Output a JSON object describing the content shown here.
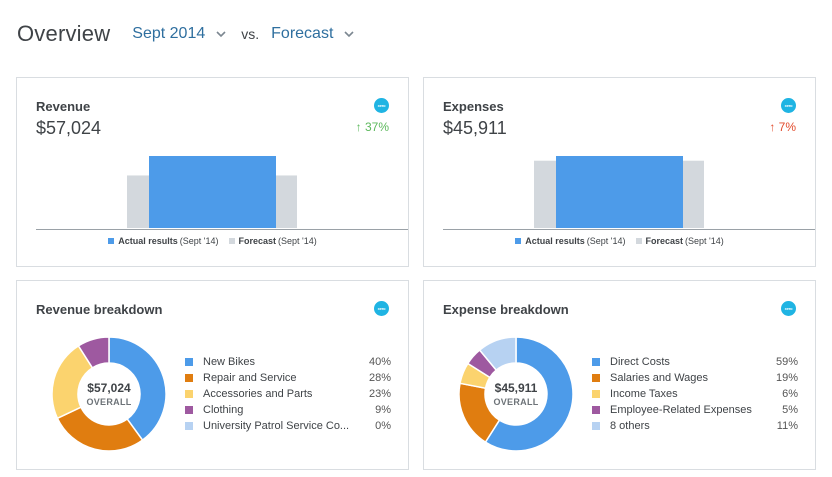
{
  "header": {
    "title": "Overview",
    "period": "Sept 2014",
    "vs_label": "vs.",
    "compare": "Forecast"
  },
  "colors": {
    "actual": "#4d9be9",
    "forecast": "#d3d8dd",
    "link": "#2f6f9f",
    "up_good": "#5cb85c",
    "up_bad": "#e24b2c",
    "badge": "#1fb4e3"
  },
  "revenue": {
    "title": "Revenue",
    "value": "$57,024",
    "change": "37%",
    "badge_icon": "xero-icon",
    "chart_data": {
      "type": "bar",
      "categories": [
        "Forecast (Sept '14)",
        "Actual results (Sept '14)"
      ],
      "values": [
        41620,
        57024
      ]
    },
    "legend": {
      "actual_bold": "Actual results",
      "actual_rest": "(Sept '14)",
      "forecast_bold": "Forecast",
      "forecast_rest": "(Sept '14)"
    }
  },
  "expenses": {
    "title": "Expenses",
    "value": "$45,911",
    "change": "7%",
    "badge_icon": "xero-icon",
    "chart_data": {
      "type": "bar",
      "categories": [
        "Forecast (Sept '14)",
        "Actual results (Sept '14)"
      ],
      "values": [
        42908,
        45911
      ]
    },
    "legend": {
      "actual_bold": "Actual results",
      "actual_rest": "(Sept '14)",
      "forecast_bold": "Forecast",
      "forecast_rest": "(Sept '14)"
    }
  },
  "revenue_breakdown": {
    "title": "Revenue breakdown",
    "center_value": "$57,024",
    "center_label": "OVERALL",
    "items": [
      {
        "name": "New Bikes",
        "pct": "40%",
        "value": 40,
        "color": "#4d9be9"
      },
      {
        "name": "Repair and Service",
        "pct": "28%",
        "value": 28,
        "color": "#e07d10"
      },
      {
        "name": "Accessories and Parts",
        "pct": "23%",
        "value": 23,
        "color": "#fbd36e"
      },
      {
        "name": "Clothing",
        "pct": "9%",
        "value": 9,
        "color": "#9e59a0"
      },
      {
        "name": "University Patrol Service Co...",
        "pct": "0%",
        "value": 0,
        "color": "#b7d2f2"
      }
    ]
  },
  "expense_breakdown": {
    "title": "Expense breakdown",
    "center_value": "$45,911",
    "center_label": "OVERALL",
    "items": [
      {
        "name": "Direct Costs",
        "pct": "59%",
        "value": 59,
        "color": "#4d9be9"
      },
      {
        "name": "Salaries and Wages",
        "pct": "19%",
        "value": 19,
        "color": "#e07d10"
      },
      {
        "name": "Income Taxes",
        "pct": "6%",
        "value": 6,
        "color": "#fbd36e"
      },
      {
        "name": "Employee-Related Expenses",
        "pct": "5%",
        "value": 5,
        "color": "#9e59a0"
      },
      {
        "name": "8 others",
        "pct": "11%",
        "value": 11,
        "color": "#b7d2f2"
      }
    ]
  }
}
